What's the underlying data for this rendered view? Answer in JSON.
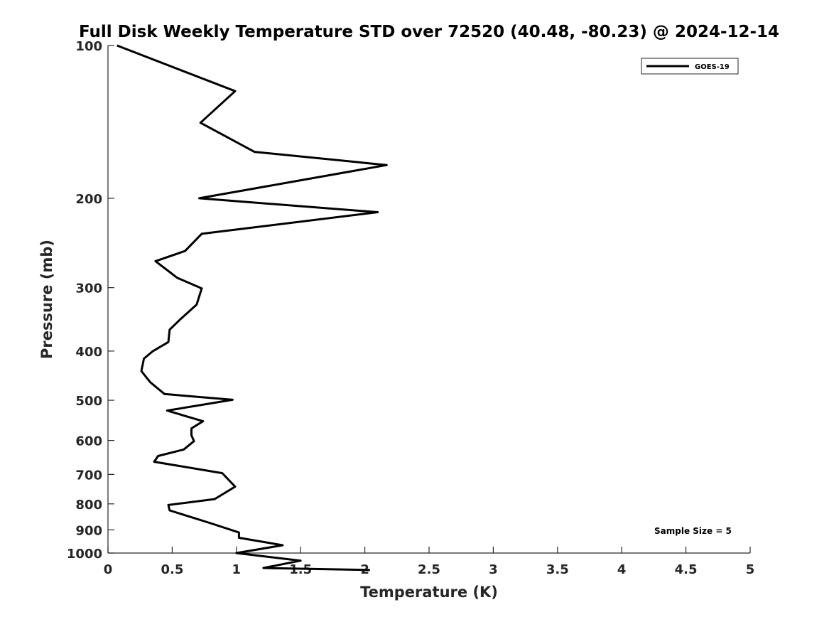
{
  "chart_data": {
    "type": "line",
    "title": "Full Disk Weekly Temperature STD over 72520 (40.48, -80.23) @ 2024-12-14",
    "xlabel": "Temperature (K)",
    "ylabel": "Pressure (mb)",
    "xlim": [
      0,
      5
    ],
    "ylim": [
      100,
      1000
    ],
    "yscale": "log",
    "y_reversed": true,
    "grid": false,
    "x_ticks": [
      0,
      0.5,
      1,
      1.5,
      2,
      2.5,
      3,
      3.5,
      4,
      4.5,
      5
    ],
    "x_tick_labels": [
      "0",
      "0.5",
      "1",
      "1.5",
      "2",
      "2.5",
      "3",
      "3.5",
      "4",
      "4.5",
      "5"
    ],
    "y_ticks": [
      100,
      200,
      300,
      400,
      500,
      600,
      700,
      800,
      900,
      1000
    ],
    "y_tick_labels": [
      "100",
      "200",
      "300",
      "400",
      "500",
      "600",
      "700",
      "800",
      "900",
      "1000"
    ],
    "legend": {
      "position": "top-right",
      "entries": [
        "GOES-19"
      ]
    },
    "annotation": "Sample Size = 5",
    "series": [
      {
        "name": "GOES-19",
        "color": "#000000",
        "temperature": [
          0.07,
          0.99,
          0.72,
          1.14,
          2.17,
          0.71,
          2.1,
          0.73,
          0.6,
          0.37,
          0.54,
          0.73,
          0.69,
          0.56,
          0.48,
          0.47,
          0.35,
          0.28,
          0.26,
          0.33,
          0.44,
          0.97,
          0.46,
          0.74,
          0.65,
          0.65,
          0.67,
          0.59,
          0.39,
          0.36,
          0.89,
          0.99,
          0.83,
          0.47,
          0.48,
          0.79,
          1.02,
          1.02,
          1.36,
          1.0,
          1.5,
          1.21,
          2.04
        ],
        "pressure": [
          100,
          123,
          142,
          162,
          172,
          200,
          213,
          235,
          254,
          266,
          287,
          301,
          324,
          347,
          363,
          384,
          400,
          414,
          438,
          461,
          486,
          499,
          524,
          550,
          568,
          586,
          602,
          625,
          644,
          661,
          696,
          740,
          783,
          804,
          824,
          872,
          911,
          933,
          965,
          1000,
          1035,
          1070,
          1080
        ]
      }
    ]
  }
}
